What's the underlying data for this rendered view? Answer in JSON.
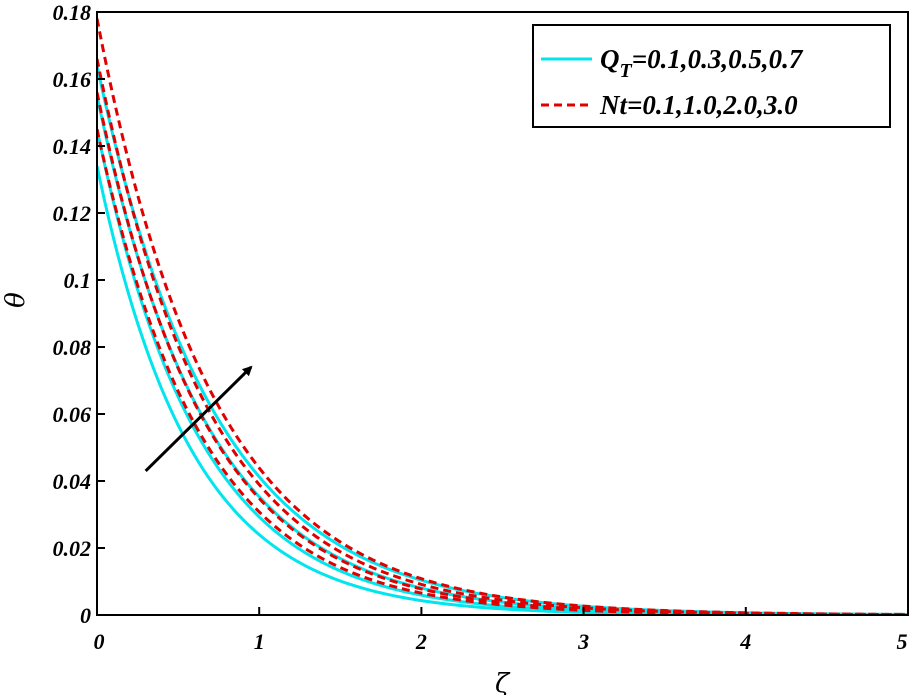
{
  "chart_data": {
    "type": "line",
    "xlabel": "ζ",
    "ylabel": "θ",
    "xlim": [
      0,
      5
    ],
    "ylim": [
      0,
      0.18
    ],
    "xticks": [
      "0",
      "1",
      "2",
      "3",
      "4",
      "5"
    ],
    "yticks": [
      "0",
      "0.02",
      "0.04",
      "0.06",
      "0.08",
      "0.1",
      "0.12",
      "0.14",
      "0.16",
      "0.18"
    ],
    "grid": false,
    "legend_position": "top-right",
    "legend": [
      {
        "label_main": "Q",
        "label_sub": "T",
        "label_rest": "=0.1,0.3,0.5,0.7",
        "color": "#00e5ee",
        "style": "solid"
      },
      {
        "label_main": "Nt=0.1,1.0,2.0,3.0",
        "color": "#e00000",
        "style": "dashed"
      }
    ],
    "series_groups": [
      {
        "parameter": "Q_T",
        "color": "#00e5ee",
        "style": "solid",
        "curves": [
          {
            "value": 0.1,
            "theta0": 0.134,
            "decay": 1.72
          },
          {
            "value": 0.3,
            "theta0": 0.145,
            "decay": 1.6
          },
          {
            "value": 0.5,
            "theta0": 0.155,
            "decay": 1.48
          },
          {
            "value": 0.7,
            "theta0": 0.164,
            "decay": 1.38
          }
        ]
      },
      {
        "parameter": "Nt",
        "color": "#e00000",
        "style": "dashed",
        "curves": [
          {
            "value": 0.1,
            "theta0": 0.145,
            "decay": 1.55
          },
          {
            "value": 1.0,
            "theta0": 0.156,
            "decay": 1.5
          },
          {
            "value": 2.0,
            "theta0": 0.166,
            "decay": 1.45
          },
          {
            "value": 3.0,
            "theta0": 0.178,
            "decay": 1.4
          }
        ]
      }
    ],
    "annotation_arrow": {
      "from": [
        0.3,
        0.043
      ],
      "to": [
        0.95,
        0.074
      ],
      "color": "#000000"
    }
  }
}
